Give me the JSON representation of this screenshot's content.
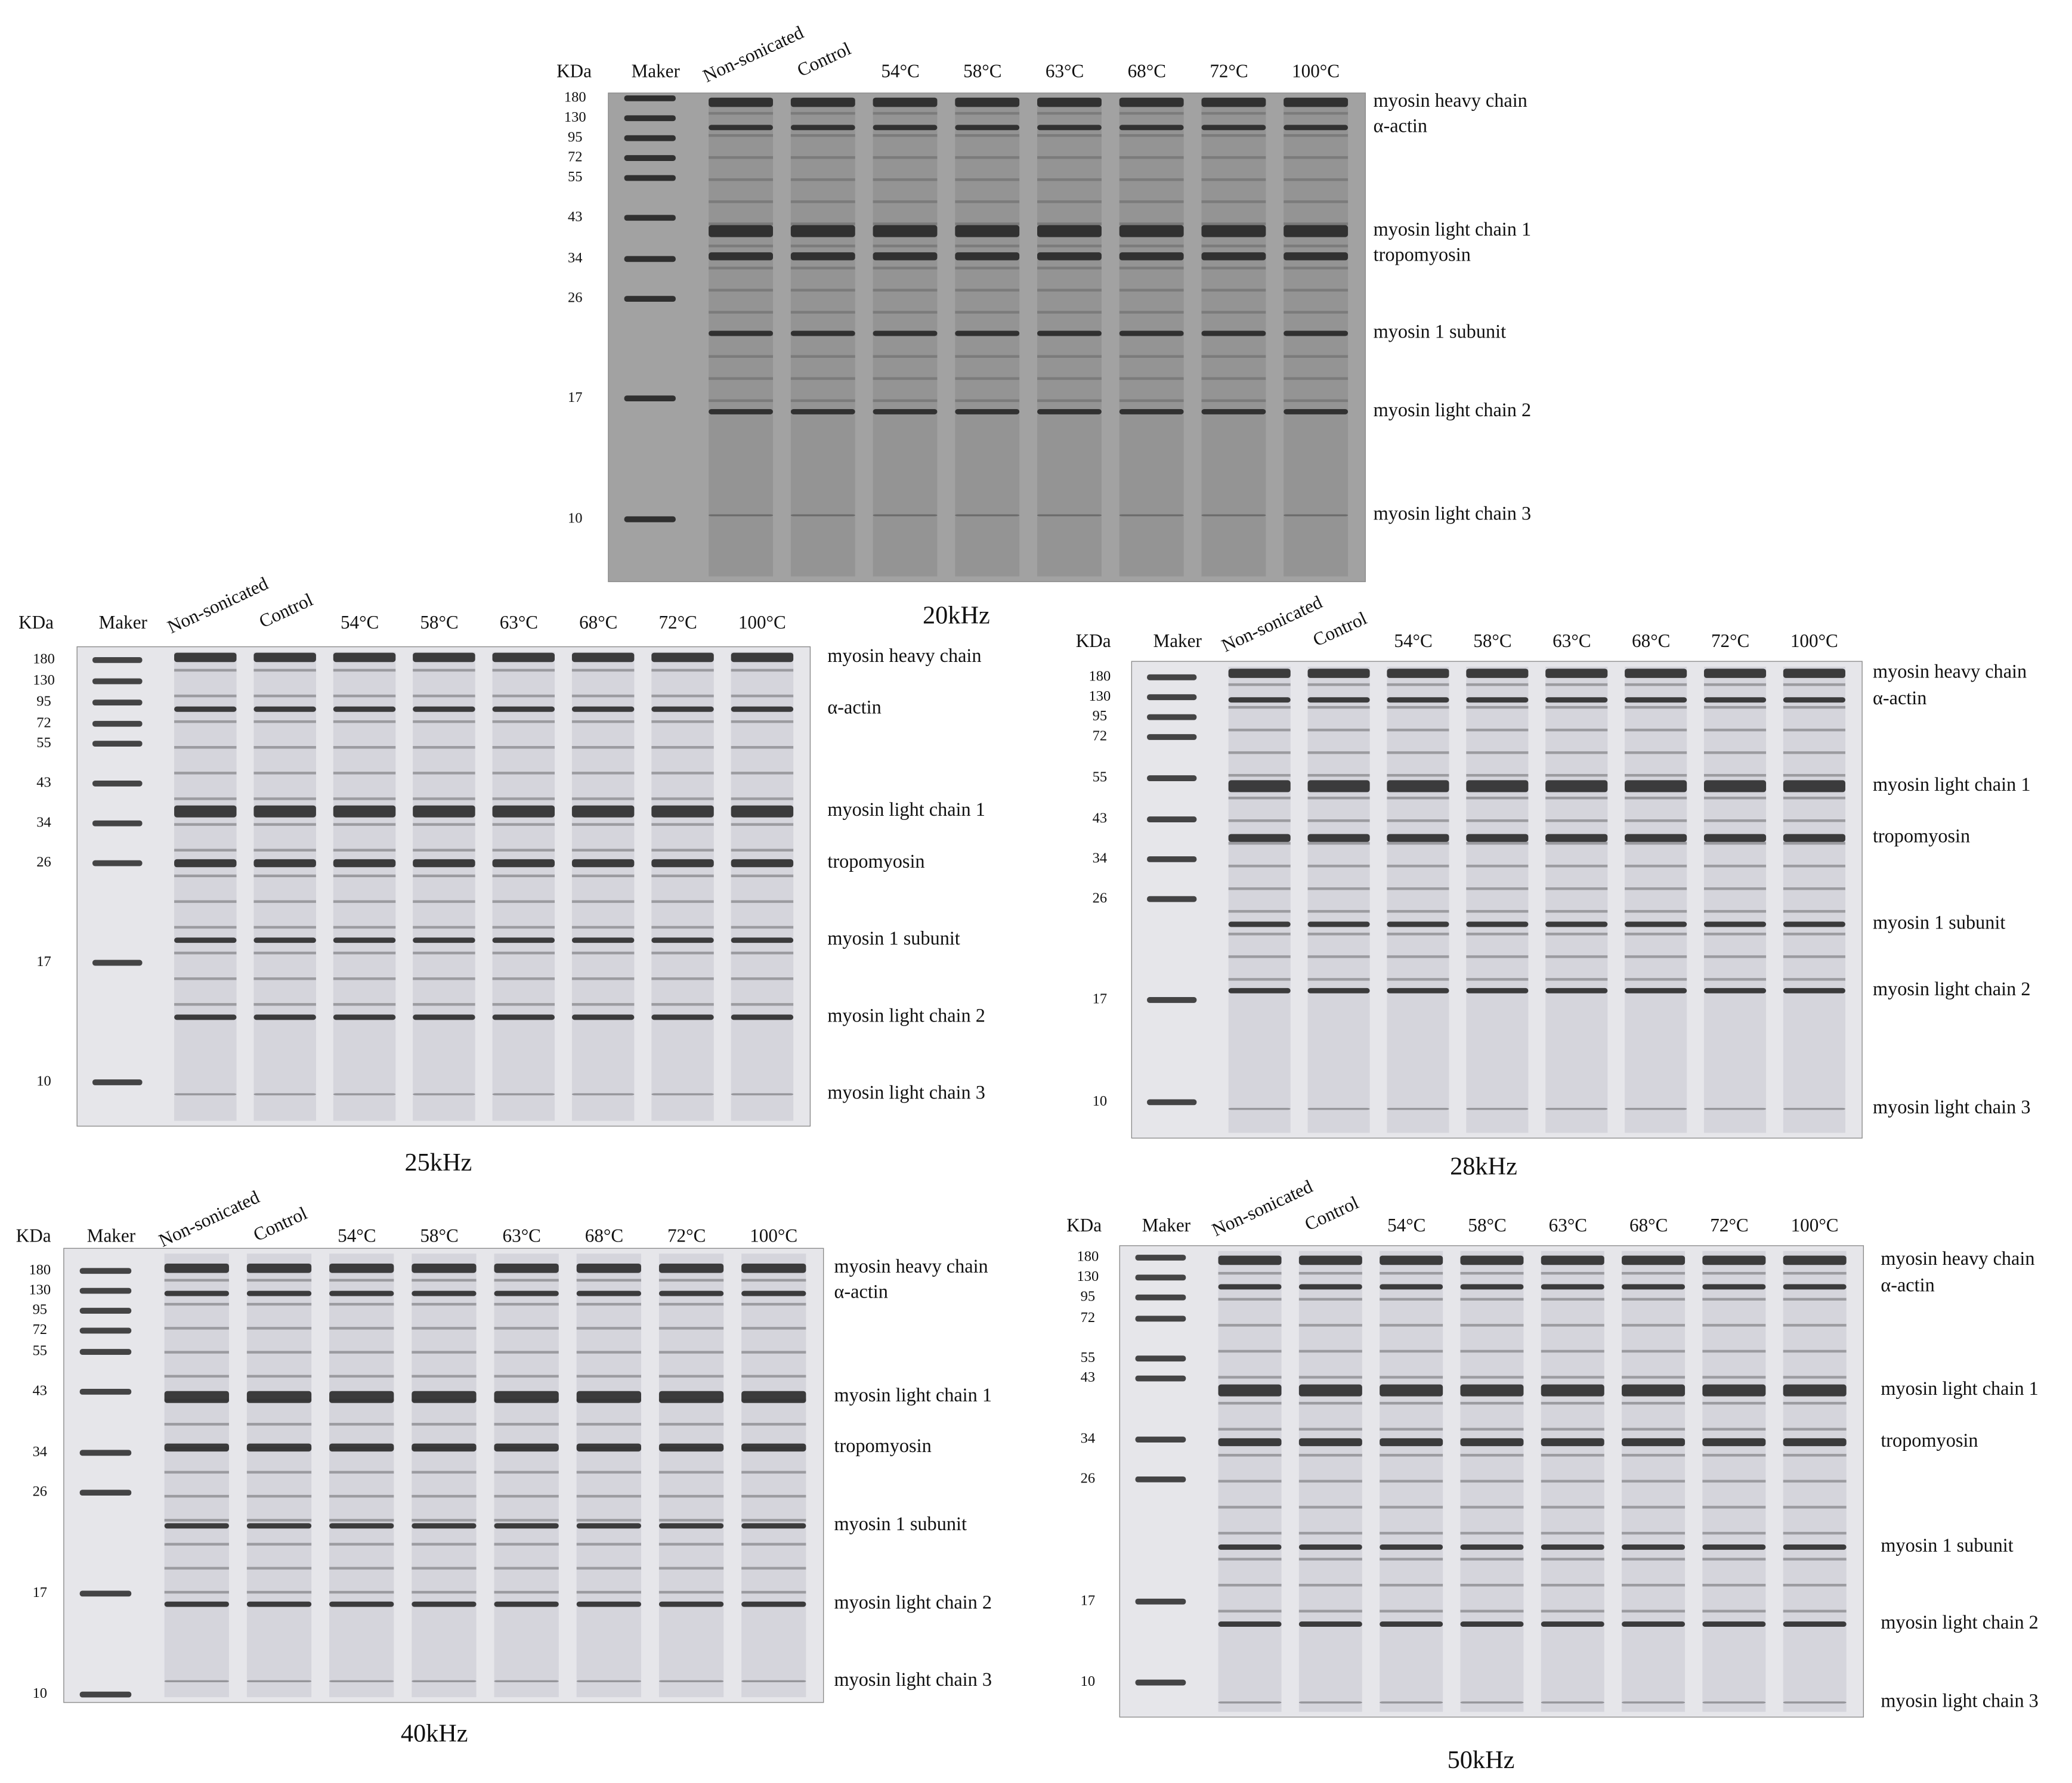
{
  "panels": [
    {
      "title": "20kHz",
      "unit": "KDa",
      "lanes": [
        "Maker",
        "Non-sonicated",
        "Control",
        "54°C",
        "58°C",
        "63°C",
        "68°C",
        "72°C",
        "100°C"
      ],
      "markers": [
        180,
        130,
        95,
        72,
        55,
        43,
        34,
        26,
        17,
        10
      ],
      "bands": [
        "myosin heavy chain",
        "α-actin",
        "myosin light chain 1",
        "tropomyosin",
        "myosin 1 subunit",
        "myosin light chain 2",
        "myosin light chain 3"
      ]
    },
    {
      "title": "25kHz",
      "unit": "KDa",
      "lanes": [
        "Maker",
        "Non-sonicated",
        "Control",
        "54°C",
        "58°C",
        "63°C",
        "68°C",
        "72°C",
        "100°C"
      ],
      "markers": [
        180,
        130,
        95,
        72,
        55,
        43,
        34,
        26,
        17,
        10
      ],
      "bands": [
        "myosin heavy chain",
        "α-actin",
        "myosin light chain 1",
        "tropomyosin",
        "myosin 1 subunit",
        "myosin light chain 2",
        "myosin light chain 3"
      ]
    },
    {
      "title": "28kHz",
      "unit": "KDa",
      "lanes": [
        "Maker",
        "Non-sonicated",
        "Control",
        "54°C",
        "58°C",
        "63°C",
        "68°C",
        "72°C",
        "100°C"
      ],
      "markers": [
        180,
        130,
        95,
        72,
        55,
        43,
        34,
        26,
        17,
        10
      ],
      "bands": [
        "myosin heavy chain",
        "α-actin",
        "myosin light chain 1",
        "tropomyosin",
        "myosin 1 subunit",
        "myosin light chain 2",
        "myosin light chain 3"
      ]
    },
    {
      "title": "40kHz",
      "unit": "KDa",
      "lanes": [
        "Maker",
        "Non-sonicated",
        "Control",
        "54°C",
        "58°C",
        "63°C",
        "68°C",
        "72°C",
        "100°C"
      ],
      "markers": [
        180,
        130,
        95,
        72,
        55,
        43,
        34,
        26,
        17,
        10
      ],
      "bands": [
        "myosin heavy chain",
        "α-actin",
        "myosin light chain 1",
        "tropomyosin",
        "myosin 1 subunit",
        "myosin light chain 2",
        "myosin light chain 3"
      ]
    },
    {
      "title": "50kHz",
      "unit": "KDa",
      "lanes": [
        "Maker",
        "Non-sonicated",
        "Control",
        "54°C",
        "58°C",
        "63°C",
        "68°C",
        "72°C",
        "100°C"
      ],
      "markers": [
        180,
        130,
        95,
        72,
        55,
        43,
        34,
        26,
        17,
        10
      ],
      "bands": [
        "myosin heavy chain",
        "α-actin",
        "myosin light chain 1",
        "tropomyosin",
        "myosin 1 subunit",
        "myosin light chain 2",
        "myosin light chain 3"
      ]
    }
  ]
}
